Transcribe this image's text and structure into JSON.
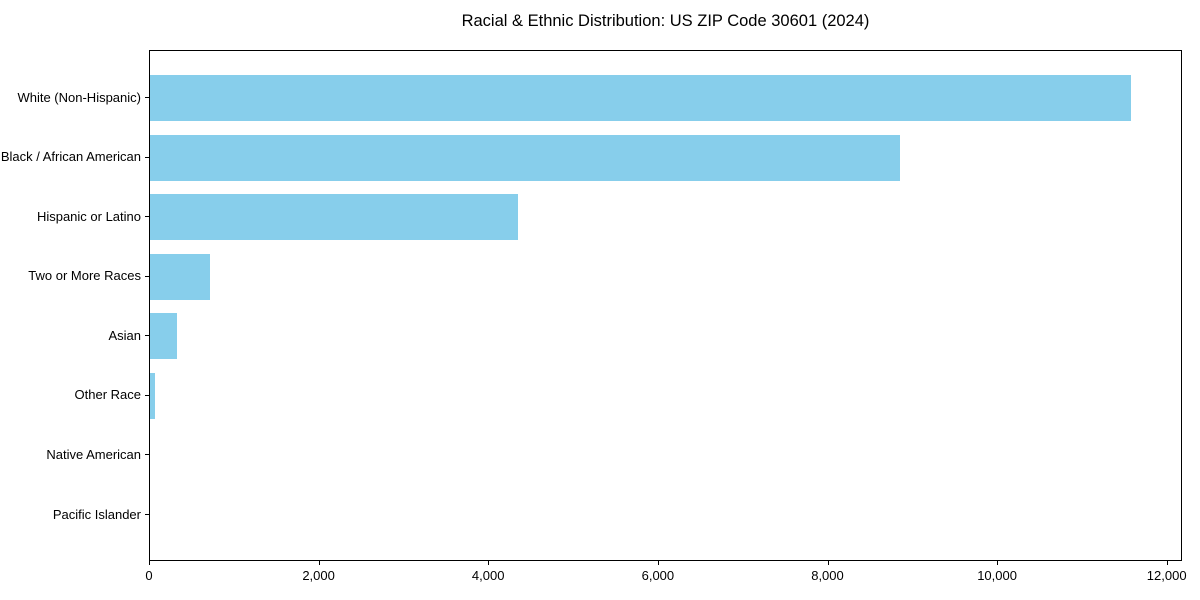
{
  "chart_data": {
    "type": "bar",
    "orientation": "horizontal",
    "title": "Racial & Ethnic Distribution: US ZIP Code 30601 (2024)",
    "categories": [
      "White (Non-Hispanic)",
      "Black / African American",
      "Hispanic or Latino",
      "Two or More Races",
      "Asian",
      "Other Race",
      "Native American",
      "Pacific Islander"
    ],
    "values": [
      11590,
      8865,
      4350,
      710,
      320,
      55,
      0,
      0
    ],
    "bar_color": "#87CEEB",
    "background_color": "#ffffff",
    "axis_color": "#000000",
    "text_color": "#000000",
    "xlabel": "",
    "ylabel": "",
    "xlim": [
      0,
      12180
    ],
    "x_ticks": [
      0,
      2000,
      4000,
      6000,
      8000,
      10000,
      12000
    ],
    "x_tick_labels": [
      "0",
      "2,000",
      "4,000",
      "6,000",
      "8,000",
      "10,000",
      "12,000"
    ],
    "grid": false,
    "legend": false
  }
}
